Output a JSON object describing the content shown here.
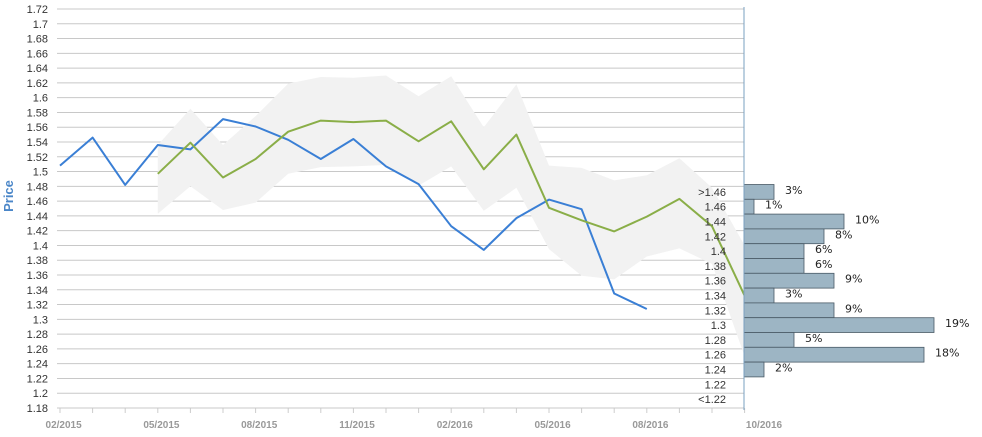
{
  "chart_data": {
    "type": "line",
    "ylabel": "Price",
    "ylim": [
      1.18,
      1.72
    ],
    "y_ticks": [
      "1.18",
      "1.2",
      "1.22",
      "1.24",
      "1.26",
      "1.28",
      "1.3",
      "1.32",
      "1.34",
      "1.36",
      "1.38",
      "1.4",
      "1.42",
      "1.44",
      "1.46",
      "1.48",
      "1.5",
      "1.52",
      "1.54",
      "1.56",
      "1.58",
      "1.6",
      "1.62",
      "1.64",
      "1.66",
      "1.68",
      "1.7",
      "1.72"
    ],
    "x_ticks": [
      "02/2015",
      "05/2015",
      "08/2015",
      "11/2015",
      "02/2016",
      "05/2016",
      "08/2016",
      "10/2016"
    ],
    "grid": true,
    "series": [
      {
        "color": "#3a7fd5",
        "points": [
          {
            "x": "2015-01",
            "y": 1.508
          },
          {
            "x": "2015-02",
            "y": 1.546
          },
          {
            "x": "2015-03",
            "y": 1.482
          },
          {
            "x": "2015-04",
            "y": 1.536
          },
          {
            "x": "2015-05",
            "y": 1.53
          },
          {
            "x": "2015-06",
            "y": 1.571
          },
          {
            "x": "2015-07",
            "y": 1.561
          },
          {
            "x": "2015-08",
            "y": 1.543
          },
          {
            "x": "2015-09",
            "y": 1.517
          },
          {
            "x": "2015-10",
            "y": 1.544
          },
          {
            "x": "2015-11",
            "y": 1.507
          },
          {
            "x": "2015-12",
            "y": 1.483
          },
          {
            "x": "2016-01",
            "y": 1.426
          },
          {
            "x": "2016-02",
            "y": 1.394
          },
          {
            "x": "2016-03",
            "y": 1.437
          },
          {
            "x": "2016-04",
            "y": 1.462
          },
          {
            "x": "2016-05",
            "y": 1.449
          },
          {
            "x": "2016-06",
            "y": 1.335
          },
          {
            "x": "2016-07",
            "y": 1.314
          }
        ]
      },
      {
        "color": "#8aae48",
        "points": [
          {
            "x": "2015-04",
            "y": 1.497
          },
          {
            "x": "2015-05",
            "y": 1.539
          },
          {
            "x": "2015-06",
            "y": 1.492
          },
          {
            "x": "2015-07",
            "y": 1.517
          },
          {
            "x": "2015-08",
            "y": 1.554
          },
          {
            "x": "2015-09",
            "y": 1.569
          },
          {
            "x": "2015-10",
            "y": 1.567
          },
          {
            "x": "2015-11",
            "y": 1.569
          },
          {
            "x": "2015-12",
            "y": 1.541
          },
          {
            "x": "2016-01",
            "y": 1.568
          },
          {
            "x": "2016-02",
            "y": 1.503
          },
          {
            "x": "2016-03",
            "y": 1.55
          },
          {
            "x": "2016-04",
            "y": 1.451
          },
          {
            "x": "2016-05",
            "y": 1.434
          },
          {
            "x": "2016-06",
            "y": 1.419
          },
          {
            "x": "2016-07",
            "y": 1.439
          },
          {
            "x": "2016-08",
            "y": 1.463
          },
          {
            "x": "2016-09",
            "y": 1.426
          },
          {
            "x": "2016-10",
            "y": 1.332
          }
        ]
      }
    ],
    "band": {
      "color": "#f2f2f2",
      "points": [
        {
          "x": "2015-04",
          "low": 1.443,
          "high": 1.536
        },
        {
          "x": "2015-05",
          "low": 1.48,
          "high": 1.585
        },
        {
          "x": "2015-06",
          "low": 1.448,
          "high": 1.536
        },
        {
          "x": "2015-07",
          "low": 1.458,
          "high": 1.575
        },
        {
          "x": "2015-08",
          "low": 1.497,
          "high": 1.619
        },
        {
          "x": "2015-09",
          "low": 1.506,
          "high": 1.628
        },
        {
          "x": "2015-10",
          "low": 1.507,
          "high": 1.627
        },
        {
          "x": "2015-11",
          "low": 1.509,
          "high": 1.63
        },
        {
          "x": "2015-12",
          "low": 1.481,
          "high": 1.602
        },
        {
          "x": "2016-01",
          "low": 1.507,
          "high": 1.629
        },
        {
          "x": "2016-02",
          "low": 1.447,
          "high": 1.56
        },
        {
          "x": "2016-03",
          "low": 1.478,
          "high": 1.618
        },
        {
          "x": "2016-04",
          "low": 1.395,
          "high": 1.508
        },
        {
          "x": "2016-05",
          "low": 1.359,
          "high": 1.505
        },
        {
          "x": "2016-06",
          "low": 1.354,
          "high": 1.488
        },
        {
          "x": "2016-07",
          "low": 1.385,
          "high": 1.495
        },
        {
          "x": "2016-08",
          "low": 1.396,
          "high": 1.518
        },
        {
          "x": "2016-09",
          "low": 1.375,
          "high": 1.478
        },
        {
          "x": "2016-10",
          "low": 1.25,
          "high": 1.4
        }
      ]
    },
    "distribution": [
      {
        "label": ">1.46",
        "pct": 3,
        "text": "3%"
      },
      {
        "label": "1.46",
        "pct": 1,
        "text": "1%"
      },
      {
        "label": "1.44",
        "pct": 10,
        "text": "10%"
      },
      {
        "label": "1.42",
        "pct": 8,
        "text": "8%"
      },
      {
        "label": "1.4",
        "pct": 6,
        "text": "6%"
      },
      {
        "label": "1.38",
        "pct": 6,
        "text": "6%"
      },
      {
        "label": "1.36",
        "pct": 9,
        "text": "9%"
      },
      {
        "label": "1.34",
        "pct": 3,
        "text": "3%"
      },
      {
        "label": "1.32",
        "pct": 9,
        "text": "9%"
      },
      {
        "label": "1.3",
        "pct": 19,
        "text": "19%"
      },
      {
        "label": "1.28",
        "pct": 5,
        "text": "5%"
      },
      {
        "label": "1.26",
        "pct": 18,
        "text": "18%"
      },
      {
        "label": "1.24",
        "pct": 2,
        "text": "2%"
      },
      {
        "label": "1.22",
        "pct": 0,
        "text": ""
      },
      {
        "label": "<1.22",
        "pct": 0,
        "text": ""
      }
    ],
    "distribution_color": "#9db5c4"
  }
}
